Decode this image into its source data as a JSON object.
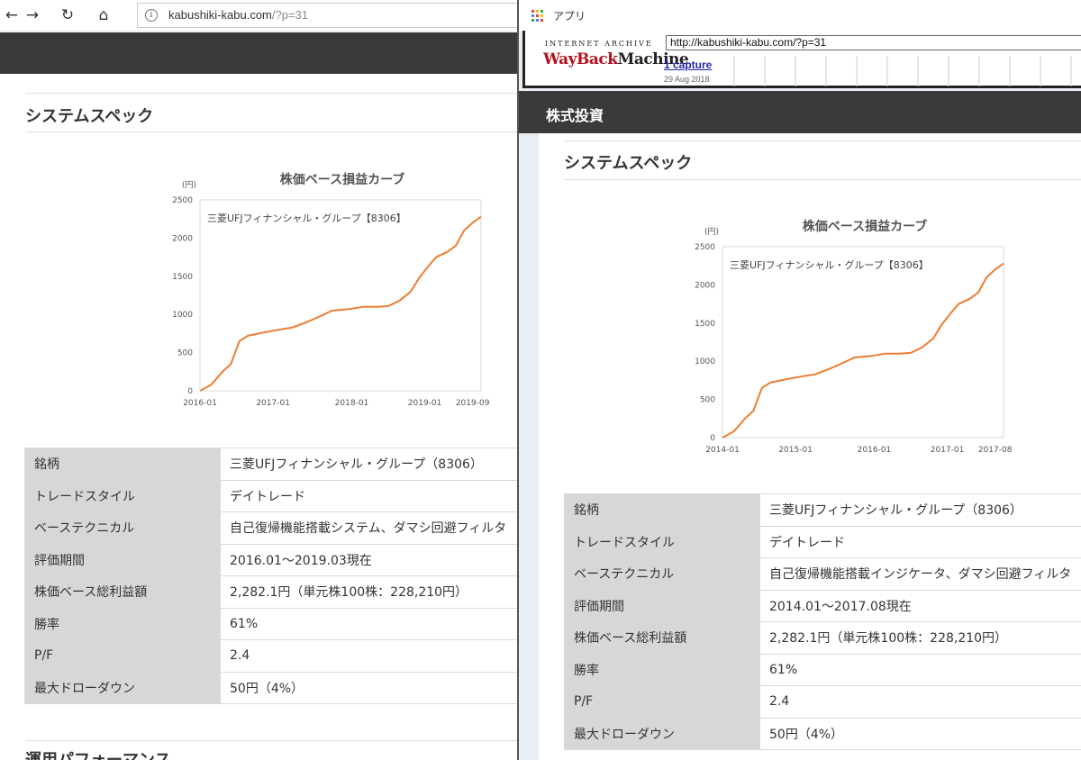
{
  "left_browser": {
    "back": "←",
    "forward": "→",
    "refresh": "↻",
    "home": "⌂",
    "url_host": "kabushiki-kabu.com",
    "url_path": "/?p=31",
    "section_title": "システムスペック",
    "next_section_title": "運用パフォーマンス"
  },
  "right_browser": {
    "apps_label": "アプリ",
    "wayback": {
      "logo_top": "INTERNET ARCHIVE",
      "logo_wayback": "WayBack",
      "logo_machine": "Machine",
      "url": "http://kabushiki-kabu.com/?p=31",
      "captures": "1 capture",
      "date": "29 Aug 2018"
    },
    "site_name": "株式投資",
    "section_title": "システムスペック"
  },
  "left_chart": {
    "title": "株価ベース損益カーブ",
    "yunit": "(円)",
    "series_label": "三菱UFJフィナンシャル・グループ【8306】",
    "yticks": [
      "2500",
      "2000",
      "1500",
      "1000",
      "500",
      "0"
    ],
    "xticks": [
      "2016-01",
      "2017-01",
      "2018-01",
      "2019-01",
      "2019-09"
    ]
  },
  "right_chart": {
    "title": "株価ベース損益カーブ",
    "yunit": "(円)",
    "series_label": "三菱UFJフィナンシャル・グループ【8306】",
    "yticks": [
      "2500",
      "2000",
      "1500",
      "1000",
      "500",
      "0"
    ],
    "xticks": [
      "2014-01",
      "2015-01",
      "2016-01",
      "2017-01",
      "2017-08"
    ]
  },
  "chart_data": [
    {
      "type": "line",
      "title": "株価ベース損益カーブ",
      "ylabel": "(円)",
      "ylim": [
        0,
        2500
      ],
      "series": [
        {
          "name": "三菱UFJフィナンシャル・グループ【8306】",
          "color": "#ed7d31",
          "points": [
            [
              0,
              0
            ],
            [
              0.04,
              80
            ],
            [
              0.08,
              250
            ],
            [
              0.11,
              350
            ],
            [
              0.14,
              650
            ],
            [
              0.17,
              720
            ],
            [
              0.22,
              760
            ],
            [
              0.28,
              800
            ],
            [
              0.33,
              830
            ],
            [
              0.38,
              900
            ],
            [
              0.43,
              980
            ],
            [
              0.47,
              1050
            ],
            [
              0.53,
              1070
            ],
            [
              0.58,
              1100
            ],
            [
              0.63,
              1100
            ],
            [
              0.67,
              1110
            ],
            [
              0.71,
              1180
            ],
            [
              0.75,
              1300
            ],
            [
              0.78,
              1480
            ],
            [
              0.81,
              1620
            ],
            [
              0.84,
              1750
            ],
            [
              0.88,
              1820
            ],
            [
              0.91,
              1900
            ],
            [
              0.94,
              2100
            ],
            [
              0.97,
              2200
            ],
            [
              1,
              2282
            ]
          ]
        }
      ]
    },
    {
      "type": "line",
      "title": "株価ベース損益カーブ",
      "ylabel": "(円)",
      "ylim": [
        0,
        2500
      ],
      "series": [
        {
          "name": "三菱UFJフィナンシャル・グループ【8306】",
          "color": "#ed7d31",
          "points": [
            [
              0,
              0
            ],
            [
              0.04,
              80
            ],
            [
              0.08,
              250
            ],
            [
              0.11,
              350
            ],
            [
              0.14,
              650
            ],
            [
              0.17,
              720
            ],
            [
              0.22,
              760
            ],
            [
              0.28,
              800
            ],
            [
              0.33,
              830
            ],
            [
              0.38,
              900
            ],
            [
              0.43,
              980
            ],
            [
              0.47,
              1050
            ],
            [
              0.53,
              1070
            ],
            [
              0.58,
              1100
            ],
            [
              0.63,
              1100
            ],
            [
              0.67,
              1110
            ],
            [
              0.71,
              1180
            ],
            [
              0.75,
              1300
            ],
            [
              0.78,
              1480
            ],
            [
              0.81,
              1620
            ],
            [
              0.84,
              1750
            ],
            [
              0.88,
              1820
            ],
            [
              0.91,
              1900
            ],
            [
              0.94,
              2100
            ],
            [
              0.97,
              2200
            ],
            [
              1,
              2282
            ]
          ]
        }
      ]
    }
  ],
  "left_table": [
    {
      "k": "銘柄",
      "v": "三菱UFJフィナンシャル・グループ（8306）"
    },
    {
      "k": "トレードスタイル",
      "v": "デイトレード"
    },
    {
      "k": "ベーステクニカル",
      "v": "自己復帰機能搭載システム、ダマシ回避フィルタ"
    },
    {
      "k": "評価期間",
      "v": "2016.01～2019.03現在"
    },
    {
      "k": "株価ベース総利益額",
      "v": "2,282.1円（単元株100株：228,210円）"
    },
    {
      "k": "勝率",
      "v": "61%"
    },
    {
      "k": "P/F",
      "v": "2.4"
    },
    {
      "k": "最大ドローダウン",
      "v": "50円（4%）"
    }
  ],
  "right_table": [
    {
      "k": "銘柄",
      "v": "三菱UFJフィナンシャル・グループ（8306）"
    },
    {
      "k": "トレードスタイル",
      "v": "デイトレード"
    },
    {
      "k": "ベーステクニカル",
      "v": "自己復帰機能搭載インジケータ、ダマシ回避フィルタ"
    },
    {
      "k": "評価期間",
      "v": "2014.01～2017.08現在"
    },
    {
      "k": "株価ベース総利益額",
      "v": "2,282.1円（単元株100株：228,210円）"
    },
    {
      "k": "勝率",
      "v": "61%"
    },
    {
      "k": "P/F",
      "v": "2.4"
    },
    {
      "k": "最大ドローダウン",
      "v": "50円（4%）"
    }
  ]
}
